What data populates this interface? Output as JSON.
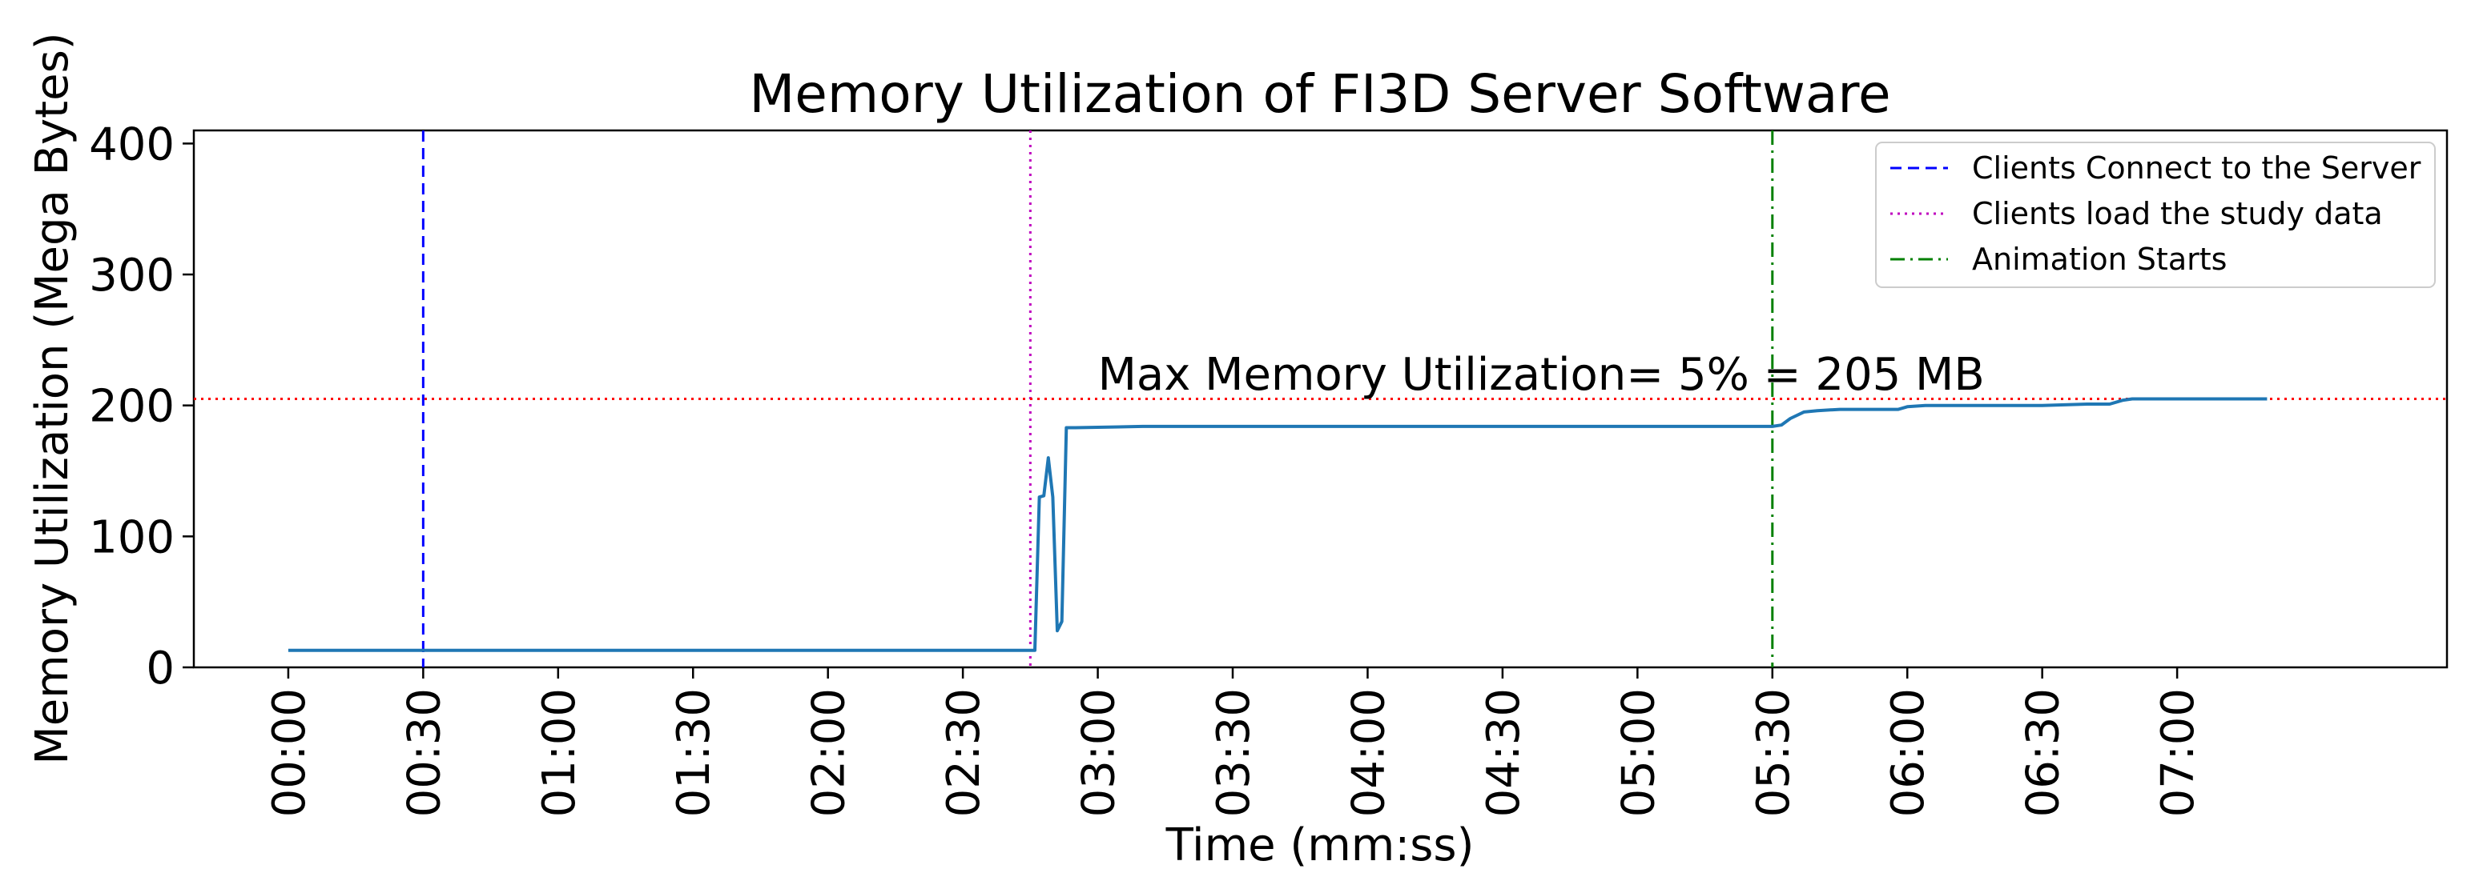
{
  "chart_data": {
    "type": "line",
    "title": "Memory Utilization of FI3D Server Software",
    "xlabel": "Time (mm:ss)",
    "ylabel": "Memory Utilization (Mega Bytes)",
    "xlim": [
      -21,
      480
    ],
    "ylim": [
      0,
      410
    ],
    "x_unit": "seconds",
    "x_ticks": [
      0,
      30,
      60,
      90,
      120,
      150,
      180,
      210,
      240,
      270,
      300,
      330,
      360,
      390,
      420
    ],
    "x_tick_labels": [
      "00:00",
      "00:30",
      "01:00",
      "01:30",
      "02:00",
      "02:30",
      "03:00",
      "03:30",
      "04:00",
      "04:30",
      "05:00",
      "05:30",
      "06:00",
      "06:30",
      "07:00"
    ],
    "y_ticks": [
      0,
      100,
      200,
      300,
      400
    ],
    "y_tick_labels": [
      "0",
      "100",
      "200",
      "300",
      "400"
    ],
    "grid": false,
    "legend_position": "top-right",
    "series": [
      {
        "color": "#1f77b4",
        "x": [
          0,
          30,
          60,
          90,
          120,
          150,
          165,
          166,
          167,
          168,
          169,
          170,
          171,
          172,
          173,
          174,
          175,
          190,
          210,
          240,
          270,
          300,
          330,
          332,
          334,
          337,
          340,
          345,
          350,
          358,
          360,
          364,
          370,
          390,
          400,
          405,
          408,
          410,
          420,
          440
        ],
        "y": [
          13,
          13,
          13,
          13,
          13,
          13,
          13,
          13,
          130,
          131,
          160,
          130,
          28,
          35,
          183,
          183,
          183,
          184,
          184,
          184,
          184,
          184,
          184,
          185,
          190,
          195,
          196,
          197,
          197,
          197,
          199,
          200,
          200,
          200,
          201,
          201,
          204,
          205,
          205,
          205
        ]
      }
    ],
    "reference_lines": [
      {
        "orientation": "vertical",
        "x": 30,
        "color": "#0000ff",
        "style": "dashed",
        "label": "Clients Connect to the Server"
      },
      {
        "orientation": "vertical",
        "x": 165,
        "color": "#bf00bf",
        "style": "dotted",
        "label": "Clients load the study data"
      },
      {
        "orientation": "vertical",
        "x": 330,
        "color": "#008000",
        "style": "dashdot",
        "label": "Animation Starts"
      },
      {
        "orientation": "horizontal",
        "y": 205,
        "color": "#ff0000",
        "style": "dotted"
      }
    ],
    "annotations": [
      {
        "text": "Max Memory Utilization= 5% = 205 MB",
        "x": 180,
        "y": 212
      }
    ]
  }
}
